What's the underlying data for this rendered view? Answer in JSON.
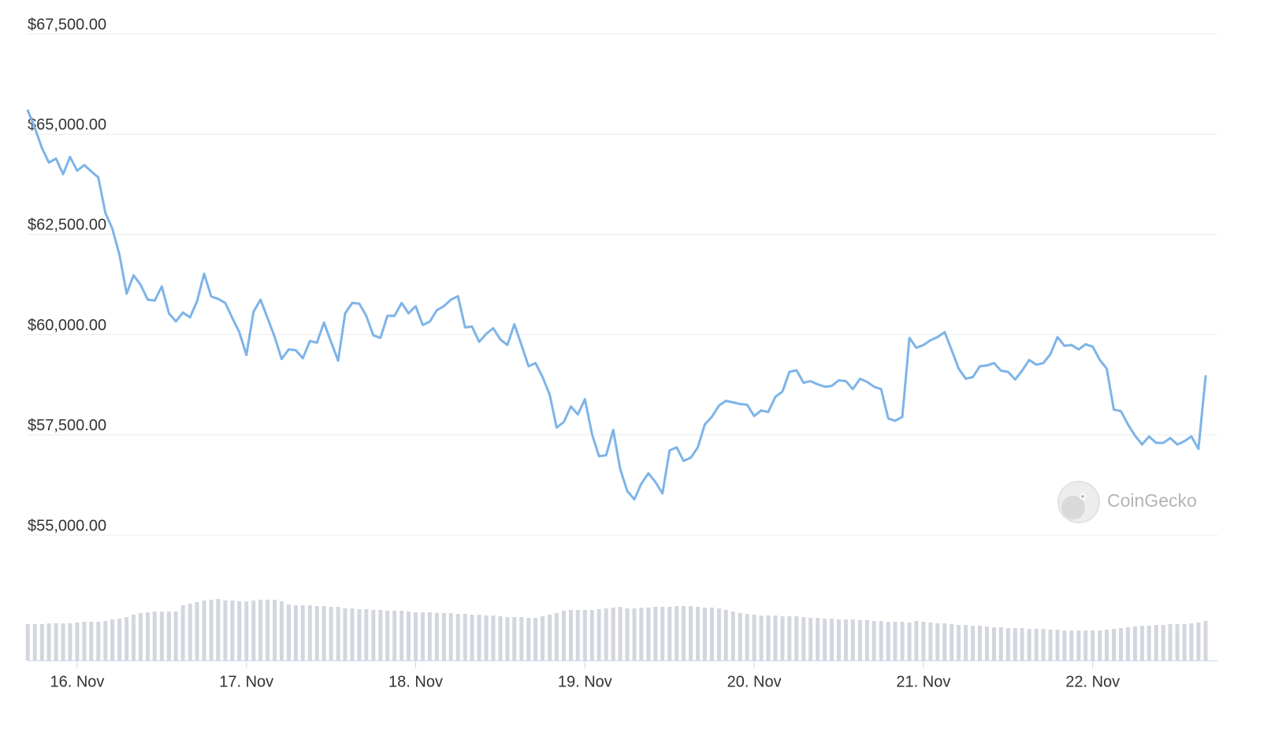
{
  "chart_data": {
    "type": "line",
    "color": "#7db4e8",
    "x": [
      15.708,
      15.75,
      15.792,
      15.833,
      15.875,
      15.917,
      15.958,
      16,
      16.042,
      16.083,
      16.125,
      16.167,
      16.208,
      16.25,
      16.292,
      16.333,
      16.375,
      16.417,
      16.458,
      16.5,
      16.542,
      16.583,
      16.625,
      16.667,
      16.708,
      16.75,
      16.792,
      16.833,
      16.875,
      16.917,
      16.958,
      17,
      17.042,
      17.083,
      17.125,
      17.167,
      17.208,
      17.25,
      17.292,
      17.333,
      17.375,
      17.417,
      17.458,
      17.5,
      17.542,
      17.583,
      17.625,
      17.667,
      17.708,
      17.75,
      17.792,
      17.833,
      17.875,
      17.917,
      17.958,
      18,
      18.042,
      18.083,
      18.125,
      18.167,
      18.208,
      18.25,
      18.292,
      18.333,
      18.375,
      18.417,
      18.458,
      18.5,
      18.542,
      18.583,
      18.625,
      18.667,
      18.708,
      18.75,
      18.792,
      18.833,
      18.875,
      18.917,
      18.958,
      19,
      19.042,
      19.083,
      19.125,
      19.167,
      19.208,
      19.25,
      19.292,
      19.333,
      19.375,
      19.417,
      19.458,
      19.5,
      19.542,
      19.583,
      19.625,
      19.667,
      19.708,
      19.75,
      19.792,
      19.833,
      19.875,
      19.917,
      19.958,
      20,
      20.042,
      20.083,
      20.125,
      20.167,
      20.208,
      20.25,
      20.292,
      20.333,
      20.375,
      20.417,
      20.458,
      20.5,
      20.542,
      20.583,
      20.625,
      20.667,
      20.708,
      20.75,
      20.792,
      20.833,
      20.875,
      20.917,
      20.958,
      21,
      21.042,
      21.083,
      21.125,
      21.167,
      21.208,
      21.25,
      21.292,
      21.333,
      21.375,
      21.417,
      21.458,
      21.5,
      21.542,
      21.583,
      21.625,
      21.667,
      21.708,
      21.75,
      21.792,
      21.833,
      21.875,
      21.917,
      21.958,
      22,
      22.042,
      22.083,
      22.125,
      22.167,
      22.208,
      22.25,
      22.292,
      22.333,
      22.375,
      22.417,
      22.458,
      22.5,
      22.542,
      22.583,
      22.625,
      22.667
    ],
    "values": [
      65590,
      65160,
      64650,
      64290,
      64390,
      64000,
      64430,
      64090,
      64230,
      64070,
      63920,
      63030,
      62640,
      61990,
      61020,
      61480,
      61240,
      60870,
      60850,
      61200,
      60530,
      60330,
      60550,
      60430,
      60830,
      61520,
      60950,
      60890,
      60790,
      60410,
      60060,
      59490,
      60570,
      60870,
      60410,
      59940,
      59390,
      59630,
      59610,
      59410,
      59840,
      59800,
      60300,
      59820,
      59350,
      60530,
      60790,
      60770,
      60470,
      59980,
      59920,
      60470,
      60470,
      60790,
      60530,
      60710,
      60240,
      60320,
      60610,
      60710,
      60870,
      60960,
      60180,
      60200,
      59820,
      60020,
      60160,
      59880,
      59740,
      60260,
      59740,
      59210,
      59290,
      58940,
      58500,
      57680,
      57820,
      58210,
      58010,
      58390,
      57520,
      56970,
      56990,
      57620,
      56650,
      56100,
      55890,
      56280,
      56540,
      56320,
      56040,
      57110,
      57190,
      56850,
      56930,
      57190,
      57760,
      57950,
      58230,
      58350,
      58310,
      58270,
      58250,
      57970,
      58110,
      58070,
      58450,
      58580,
      59070,
      59110,
      58800,
      58840,
      58760,
      58700,
      58720,
      58860,
      58840,
      58640,
      58900,
      58820,
      58700,
      58640,
      57910,
      57850,
      57950,
      59920,
      59670,
      59740,
      59860,
      59940,
      60060,
      59610,
      59150,
      58900,
      58940,
      59210,
      59230,
      59290,
      59100,
      59070,
      58880,
      59100,
      59370,
      59250,
      59290,
      59510,
      59940,
      59720,
      59740,
      59630,
      59760,
      59700,
      59370,
      59150,
      58130,
      58090,
      57760,
      57480,
      57260,
      57460,
      57300,
      57300,
      57420,
      57260,
      57340,
      57460,
      57150,
      58960
    ],
    "volume": {
      "color": "#d3d6de",
      "values": [
        46,
        46,
        46,
        47,
        47,
        47,
        47,
        48,
        49,
        49,
        49,
        50,
        52,
        53,
        55,
        58,
        60,
        61,
        62,
        62,
        62,
        62,
        70,
        72,
        74,
        76,
        77,
        78,
        76,
        76,
        75,
        75,
        76,
        77,
        77,
        77,
        75,
        71,
        70,
        70,
        70,
        69,
        69,
        68,
        68,
        66,
        66,
        65,
        65,
        64,
        64,
        63,
        63,
        63,
        62,
        61,
        61,
        61,
        60,
        60,
        60,
        59,
        59,
        58,
        58,
        57,
        57,
        56,
        55,
        55,
        55,
        54,
        54,
        56,
        58,
        60,
        63,
        64,
        64,
        64,
        64,
        65,
        66,
        67,
        68,
        66,
        66,
        67,
        67,
        68,
        68,
        68,
        69,
        69,
        69,
        68,
        67,
        67,
        66,
        64,
        62,
        60,
        59,
        58,
        57,
        57,
        57,
        56,
        56,
        56,
        55,
        54,
        54,
        53,
        53,
        52,
        52,
        52,
        51,
        51,
        50,
        50,
        49,
        49,
        49,
        48,
        50,
        49,
        48,
        47,
        47,
        46,
        45,
        45,
        44,
        44,
        43,
        42,
        42,
        41,
        41,
        41,
        40,
        40,
        40,
        39,
        39,
        38,
        38,
        38,
        38,
        38,
        38,
        39,
        40,
        41,
        42,
        43,
        44,
        44,
        45,
        45,
        46,
        46,
        46,
        47,
        48,
        50
      ]
    },
    "xlim": [
      15.707,
      22.737
    ],
    "xticks": [
      {
        "value": 16,
        "label": "16. Nov"
      },
      {
        "value": 17,
        "label": "17. Nov"
      },
      {
        "value": 18,
        "label": "18. Nov"
      },
      {
        "value": 19,
        "label": "19. Nov"
      },
      {
        "value": 20,
        "label": "20. Nov"
      },
      {
        "value": 21,
        "label": "21. Nov"
      },
      {
        "value": 22,
        "label": "22. Nov"
      }
    ],
    "ylim": [
      55000,
      67500
    ],
    "yticks": [
      {
        "value": 55000,
        "label": "$55,000.00"
      },
      {
        "value": 57500,
        "label": "$57,500.00"
      },
      {
        "value": 60000,
        "label": "$60,000.00"
      },
      {
        "value": 62500,
        "label": "$62,500.00"
      },
      {
        "value": 65000,
        "label": "$65,000.00"
      },
      {
        "value": 67500,
        "label": "$67,500.00"
      }
    ],
    "grid": true,
    "watermark": "CoinGecko"
  }
}
